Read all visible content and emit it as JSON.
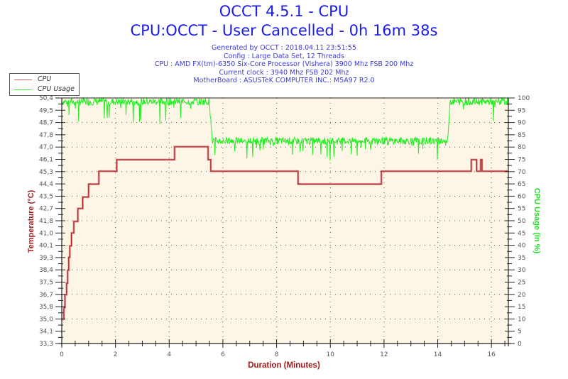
{
  "header": {
    "title": "OCCT 4.5.1 - CPU",
    "subtitle": "CPU:OCCT - User Cancelled - 0h 16m 38s",
    "info": [
      "Generated by OCCT : 2018.04.11 23:51:55",
      "Config : Large Data Set, 12 Threads",
      "CPU : AMD FX(tm)-6350 Six-Core Processor (Vishera) 3900 Mhz FSB 200 Mhz",
      "Current clock : 3940 Mhz FSB 202 Mhz",
      "MotherBoard : ASUSTeK COMPUTER INC.: M5A97 R2.0"
    ]
  },
  "legend": {
    "items": [
      {
        "label": "CPU",
        "color": "#b02a2a"
      },
      {
        "label": "CPU Usage",
        "color": "#33ee33"
      }
    ]
  },
  "colors": {
    "plot_bg": "#fdf6e7",
    "temp_line": "#a82020",
    "temp_shadow": "#e0a0a0",
    "usage_line": "#22ee22",
    "axis": "#222222",
    "grid": "#555555"
  },
  "chart_data": {
    "type": "line",
    "title": "OCCT 4.5.1 - CPU",
    "subtitle": "CPU:OCCT - User Cancelled - 0h 16m 38s",
    "xlabel": "Duration (Minutes)",
    "ylabel": "Temperature (°C)",
    "y2label": "CPU Usage (in %)",
    "xlim": [
      0,
      16.63
    ],
    "ylim": [
      33.3,
      50.4
    ],
    "y2lim": [
      0,
      100
    ],
    "x_ticks": [
      "0",
      "2",
      "4",
      "6",
      "8",
      "10",
      "12",
      "14",
      "16"
    ],
    "y_ticks": [
      "33,3",
      "34,1",
      "35,0",
      "35,8",
      "36,7",
      "37,5",
      "38,4",
      "39,3",
      "40,1",
      "41,0",
      "41,8",
      "42,7",
      "43,5",
      "44,4",
      "45,3",
      "46,1",
      "47,0",
      "47,8",
      "48,7",
      "49,5",
      "50,4"
    ],
    "y2_ticks": [
      "0",
      "5",
      "10",
      "15",
      "20",
      "25",
      "30",
      "35",
      "40",
      "45",
      "50",
      "55",
      "60",
      "65",
      "70",
      "75",
      "80",
      "85",
      "90",
      "95",
      "100"
    ],
    "grid": true,
    "legend_position": "top-left",
    "series": [
      {
        "name": "CPU",
        "axis": "left",
        "x": [
          0,
          0.08,
          0.08,
          0.12,
          0.12,
          0.18,
          0.18,
          0.22,
          0.22,
          0.26,
          0.26,
          0.3,
          0.3,
          0.36,
          0.36,
          0.45,
          0.45,
          0.6,
          0.6,
          0.78,
          0.78,
          1.0,
          1.0,
          1.38,
          1.38,
          2.05,
          2.05,
          4.2,
          4.2,
          5.45,
          5.45,
          5.55,
          5.55,
          8.8,
          8.8,
          11.9,
          11.9,
          11.98,
          11.98,
          12.25,
          12.25,
          12.3,
          12.3,
          13.6,
          13.6,
          13.65,
          13.65,
          15.25,
          15.25,
          15.45,
          15.45,
          15.6,
          15.6,
          15.65,
          15.65,
          16.63
        ],
        "y": [
          35.0,
          35.0,
          35.8,
          35.8,
          36.7,
          36.7,
          37.5,
          37.5,
          38.4,
          38.4,
          39.3,
          39.3,
          40.1,
          40.1,
          41.0,
          41.0,
          41.8,
          41.8,
          42.7,
          42.7,
          43.5,
          43.5,
          44.4,
          44.4,
          45.3,
          45.3,
          46.1,
          46.1,
          47.0,
          47.0,
          46.1,
          46.1,
          45.3,
          45.3,
          44.4,
          44.4,
          45.3,
          45.3,
          45.3,
          45.3,
          45.3,
          45.3,
          45.3,
          45.3,
          45.3,
          45.3,
          45.3,
          45.3,
          46.1,
          46.1,
          45.3,
          45.3,
          46.1,
          46.1,
          45.3,
          45.3
        ]
      },
      {
        "name": "CPU Usage",
        "axis": "right",
        "x": [
          0,
          5.5,
          5.55,
          5.65,
          14.35,
          14.45,
          16.63
        ],
        "y": [
          99,
          98,
          90,
          83,
          83,
          98,
          98
        ]
      }
    ]
  }
}
